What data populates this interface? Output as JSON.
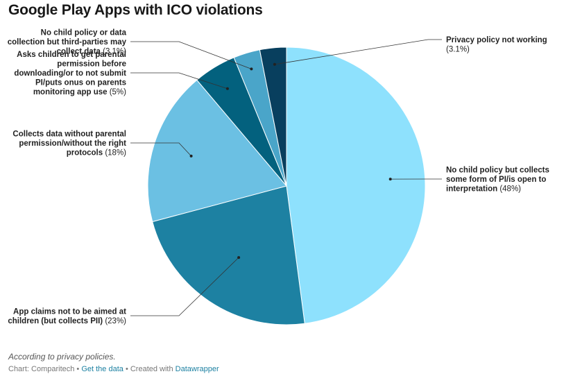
{
  "title": "Google Play Apps with ICO violations",
  "note": "According to privacy policies.",
  "footer": {
    "prefix": "Chart: Comparitech",
    "sep1": " • ",
    "get_data": "Get the data",
    "sep2": " • Created with ",
    "datawrapper": "Datawrapper"
  },
  "chart_data": {
    "type": "pie",
    "slices": [
      {
        "label": "No child policy but collects some form of PI/is open to interpretation",
        "value": 48,
        "value_label": "(48%)",
        "color": "#8ee1fd"
      },
      {
        "label": "App claims not to be aimed at children (but collects PII)",
        "value": 23,
        "value_label": "(23%)",
        "color": "#1d81a2"
      },
      {
        "label": "Collects data without parental permission/without the right protocols",
        "value": 18,
        "value_label": "(18%)",
        "color": "#6bc0e3"
      },
      {
        "label": "Asks children to get parental permission before downloading/or to not submit PI/puts onus on parents monitoring app use",
        "value": 5,
        "value_label": "(5%)",
        "color": "#03617e"
      },
      {
        "label": "No child policy or data collection but third-parties may collect data",
        "value": 3.1,
        "value_label": "(3.1%)",
        "color": "#4aa5c9"
      },
      {
        "label": "Privacy policy not working",
        "value": 3.1,
        "value_label": "(3.1%)",
        "color": "#083f5e"
      }
    ]
  }
}
